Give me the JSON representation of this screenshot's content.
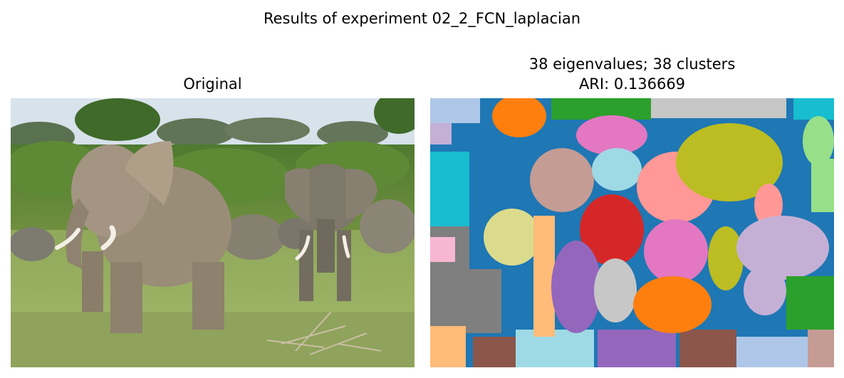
{
  "figure": {
    "suptitle": "Results of experiment 02_2_FCN_laplacian"
  },
  "panels": [
    {
      "title": "Original",
      "content": "photograph of a herd of elephants walking on grass"
    },
    {
      "title_line1": "38 eigenvalues; 38 clusters",
      "title_line2": "ARI: 0.136669",
      "content": "segmentation map with 38 color-coded clusters"
    }
  ],
  "colors": {
    "background": "#ffffff",
    "segmentation_palette": [
      "#1f77b4",
      "#ff7f0e",
      "#2ca02c",
      "#d62728",
      "#9467bd",
      "#8c564b",
      "#e377c2",
      "#7f7f7f",
      "#bcbd22",
      "#17becf",
      "#aec7e8",
      "#ffbb78",
      "#98df8a",
      "#ff9896",
      "#c5b0d5",
      "#c49c94",
      "#f7b6d2",
      "#c7c7c7",
      "#dbdb8d",
      "#9edae5"
    ]
  }
}
